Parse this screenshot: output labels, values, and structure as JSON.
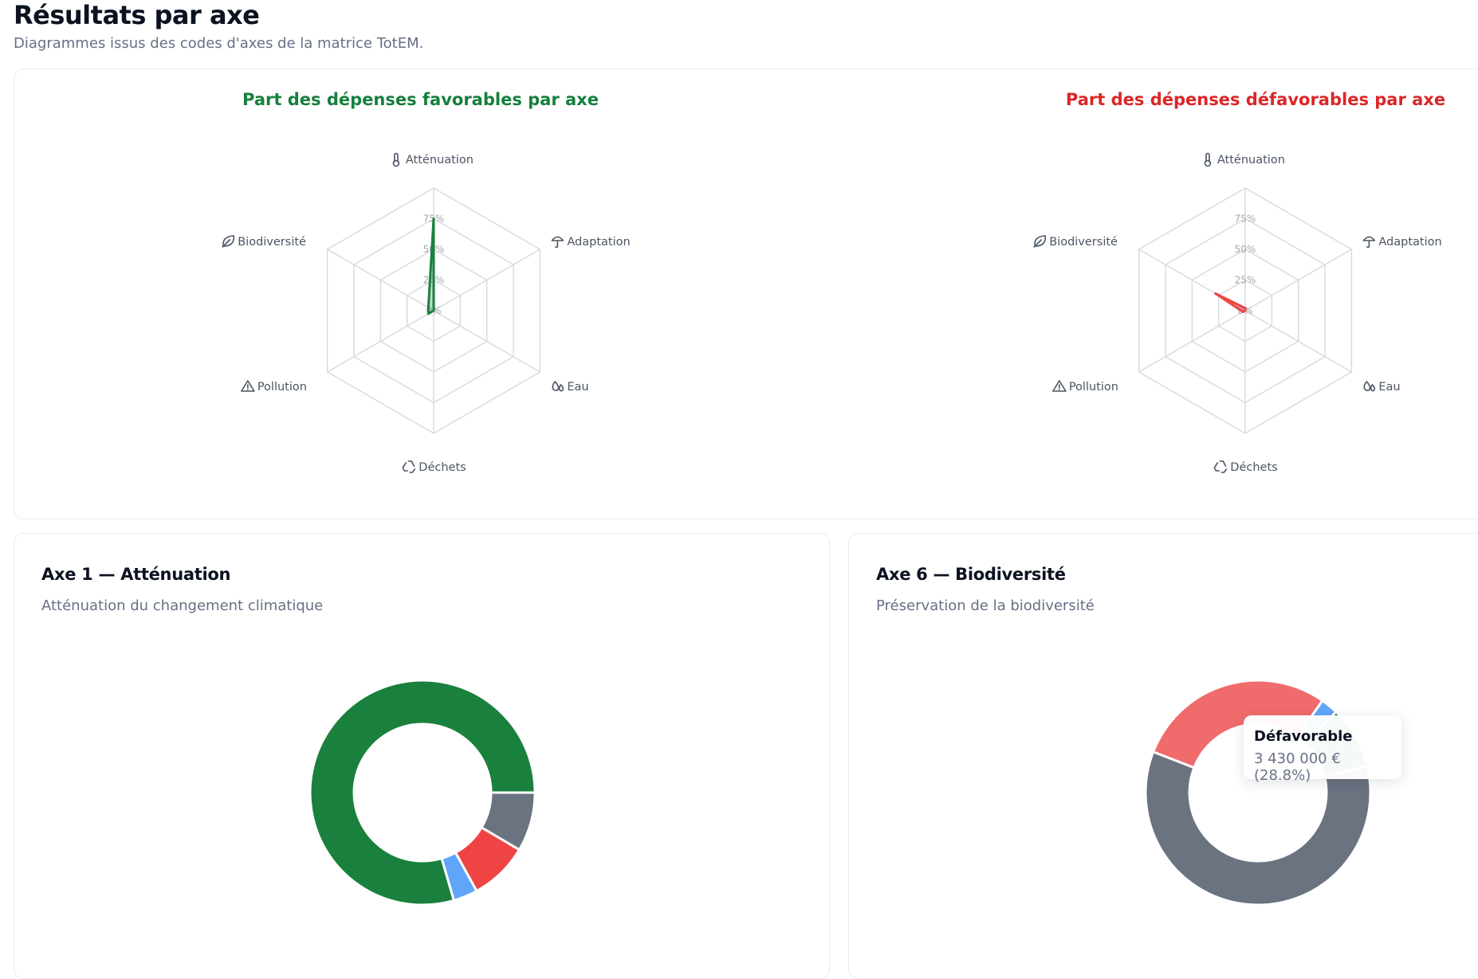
{
  "header": {
    "title": "Résultats par axe",
    "subtitle": "Diagrammes issus des codes d'axes de la matrice TotEM."
  },
  "radar_labels": {
    "attenuation": "Atténuation",
    "adaptation": "Adaptation",
    "eau": "Eau",
    "dechets": "Déchets",
    "pollution": "Pollution",
    "biodiversite": "Biodiversité",
    "tick_75": "75%",
    "tick_50": "50%",
    "tick_25": "25%",
    "tick_0": "0%"
  },
  "icons": {
    "attenuation": "thermometer-icon",
    "adaptation": "umbrella-icon",
    "eau": "droplets-icon",
    "dechets": "recycle-icon",
    "pollution": "warning-icon",
    "biodiversite": "leaf-icon"
  },
  "colors": {
    "favorable": "#1a803d",
    "defavorable": "#ef4444",
    "neutre": "#6b7280",
    "autre": "#60a5fa",
    "defavorable_light": "#f06b6b",
    "grid": "#d6d9de"
  },
  "chart_data": [
    {
      "type": "radar",
      "title": "Part des dépenses favorables par axe",
      "axes": [
        "Atténuation",
        "Adaptation",
        "Eau",
        "Déchets",
        "Pollution",
        "Biodiversité"
      ],
      "ticks": [
        "0%",
        "25%",
        "50%",
        "75%"
      ],
      "rmax": 100,
      "values": [
        75,
        0,
        0,
        0,
        5,
        5
      ]
    },
    {
      "type": "radar",
      "title": "Part des dépenses défavorables par axe",
      "axes": [
        "Atténuation",
        "Adaptation",
        "Eau",
        "Déchets",
        "Pollution",
        "Biodiversité"
      ],
      "ticks": [
        "0%",
        "25%",
        "50%",
        "75%"
      ],
      "rmax": 100,
      "values": [
        2,
        0,
        0,
        0,
        2,
        28
      ]
    },
    {
      "type": "pie",
      "title": "Axe 1 — Atténuation",
      "subtitle": "Atténuation du changement climatique",
      "slices": [
        {
          "value": 8.5
        },
        {
          "value": 8.5
        },
        {
          "value": 3.5
        },
        {
          "value": 79.5
        }
      ]
    },
    {
      "type": "pie",
      "title": "Axe 6 — Biodiversité",
      "subtitle": "Préservation de la biodiversité",
      "tooltip": {
        "label": "Défavorable",
        "value": "3 430 000 € (28.8%)"
      },
      "slices": [
        {
          "value": 2.5
        },
        {
          "value": 9.0
        },
        {
          "value": 59.7
        },
        {
          "value": 28.8
        }
      ]
    }
  ]
}
